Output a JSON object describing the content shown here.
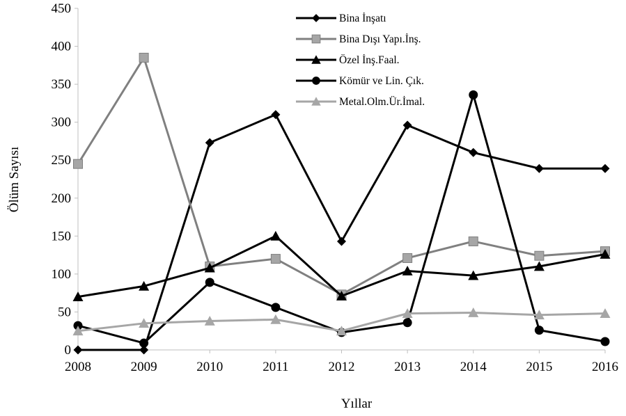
{
  "chart_data": {
    "type": "line",
    "title": "",
    "xlabel": "Yıllar",
    "ylabel": "Ölüm Sayısı",
    "ylim": [
      0,
      450
    ],
    "yticks": [
      0,
      50,
      100,
      150,
      200,
      250,
      300,
      350,
      400,
      450
    ],
    "grid": false,
    "legend_position": "top-right",
    "categories": [
      "2008",
      "2009",
      "2010",
      "2011",
      "2012",
      "2013",
      "2014",
      "2015",
      "2016"
    ],
    "series": [
      {
        "name": "Bina İnşatı",
        "color": "#000000",
        "marker": "diamond",
        "values": [
          0,
          0,
          273,
          310,
          143,
          296,
          260,
          239,
          239
        ]
      },
      {
        "name": "Bina Dışı Yapı.İnş.",
        "color": "#808080",
        "marker": "square",
        "values": [
          245,
          385,
          110,
          120,
          73,
          121,
          143,
          124,
          130
        ]
      },
      {
        "name": "Özel İnş.Faal.",
        "color": "#000000",
        "marker": "triangle",
        "values": [
          70,
          84,
          108,
          150,
          71,
          104,
          98,
          110,
          126
        ]
      },
      {
        "name": "Kömür ve Lin. Çık.",
        "color": "#000000",
        "marker": "circle",
        "values": [
          32,
          9,
          89,
          56,
          23,
          36,
          336,
          26,
          11
        ]
      },
      {
        "name": "Metal.Olm.Ür.İmal.",
        "color": "#a6a6a6",
        "marker": "triangle",
        "values": [
          25,
          35,
          38,
          40,
          25,
          48,
          49,
          46,
          48
        ]
      }
    ]
  }
}
